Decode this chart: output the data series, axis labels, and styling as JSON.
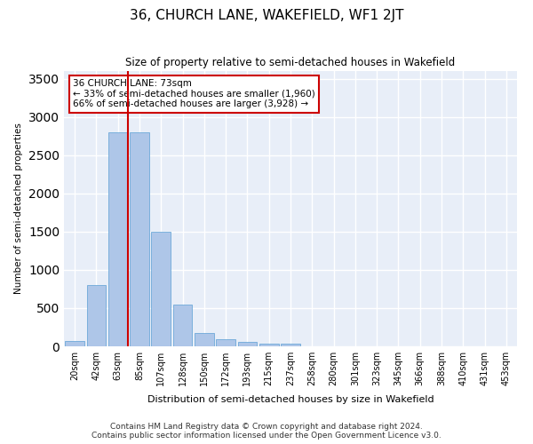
{
  "title": "36, CHURCH LANE, WAKEFIELD, WF1 2JT",
  "subtitle": "Size of property relative to semi-detached houses in Wakefield",
  "xlabel": "Distribution of semi-detached houses by size in Wakefield",
  "ylabel": "Number of semi-detached properties",
  "footer_line1": "Contains HM Land Registry data © Crown copyright and database right 2024.",
  "footer_line2": "Contains public sector information licensed under the Open Government Licence v3.0.",
  "categories": [
    "20sqm",
    "42sqm",
    "63sqm",
    "85sqm",
    "107sqm",
    "128sqm",
    "150sqm",
    "172sqm",
    "193sqm",
    "215sqm",
    "237sqm",
    "258sqm",
    "280sqm",
    "301sqm",
    "323sqm",
    "345sqm",
    "366sqm",
    "388sqm",
    "410sqm",
    "431sqm",
    "453sqm"
  ],
  "values": [
    75,
    800,
    2800,
    2800,
    1500,
    550,
    175,
    90,
    60,
    40,
    30,
    5,
    2,
    1,
    1,
    0,
    0,
    0,
    0,
    0,
    0
  ],
  "bar_color": "#aec6e8",
  "bar_edge_color": "#5a9fd4",
  "background_color": "#e8eef8",
  "grid_color": "#ffffff",
  "red_line_x": 2,
  "red_line_color": "#cc0000",
  "annotation_text": "36 CHURCH LANE: 73sqm\n← 33% of semi-detached houses are smaller (1,960)\n66% of semi-detached houses are larger (3,928) →",
  "annotation_box_color": "#ffffff",
  "annotation_box_edge": "#cc0000",
  "ylim": [
    0,
    3600
  ],
  "yticks": [
    0,
    500,
    1000,
    1500,
    2000,
    2500,
    3000,
    3500
  ]
}
